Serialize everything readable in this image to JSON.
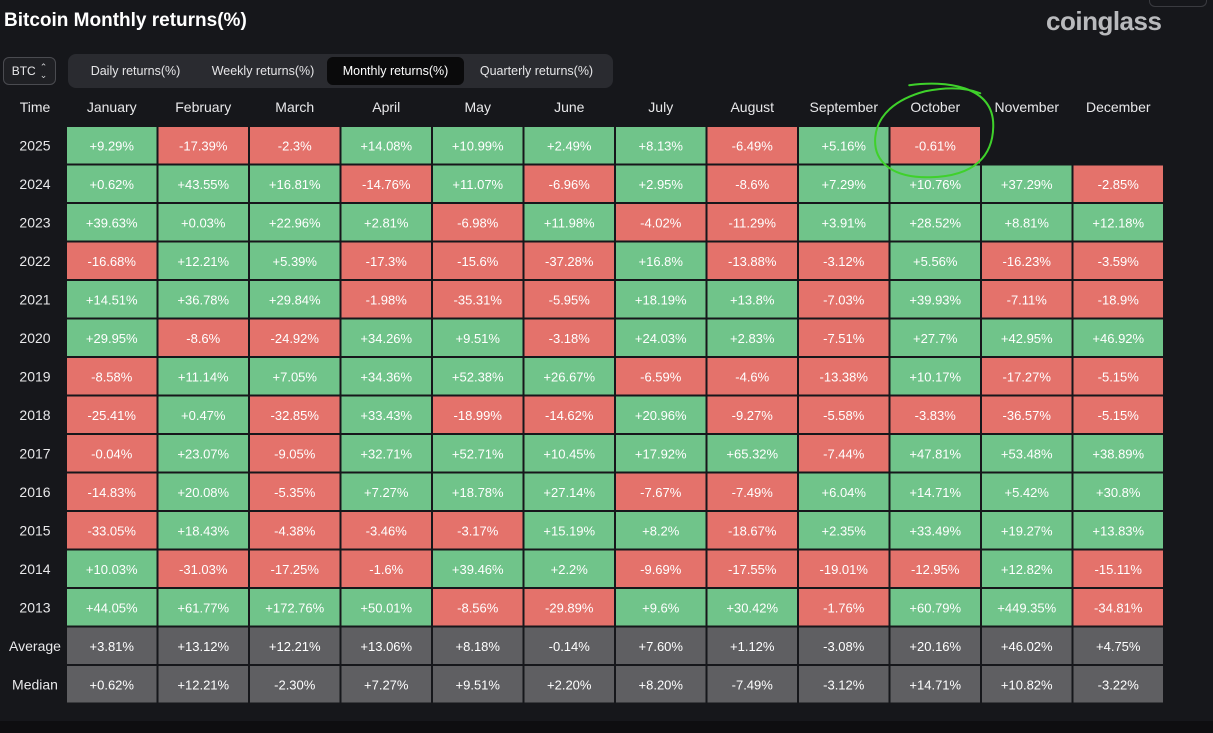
{
  "title": "Bitcoin Monthly returns(%)",
  "logo": "coinglass",
  "asset_select": {
    "value": "BTC"
  },
  "tabs": [
    {
      "label": "Daily returns(%)",
      "active": false
    },
    {
      "label": "Weekly returns(%)",
      "active": false
    },
    {
      "label": "Monthly returns(%)",
      "active": true
    },
    {
      "label": "Quarterly returns(%)",
      "active": false
    }
  ],
  "colors": {
    "positive": "#70c48a",
    "negative": "#e4726b",
    "summary": "#5f5f62",
    "highlight_circle": "#3fd12b",
    "background": "#16171b"
  },
  "chart_data": {
    "type": "table",
    "row_header": "Time",
    "columns": [
      "January",
      "February",
      "March",
      "April",
      "May",
      "June",
      "July",
      "August",
      "September",
      "October",
      "November",
      "December"
    ],
    "rows": [
      {
        "label": "2025",
        "values": [
          "+9.29%",
          "-17.39%",
          "-2.3%",
          "+14.08%",
          "+10.99%",
          "+2.49%",
          "+8.13%",
          "-6.49%",
          "+5.16%",
          "-0.61%"
        ]
      },
      {
        "label": "2024",
        "values": [
          "+0.62%",
          "+43.55%",
          "+16.81%",
          "-14.76%",
          "+11.07%",
          "-6.96%",
          "+2.95%",
          "-8.6%",
          "+7.29%",
          "+10.76%",
          "+37.29%",
          "-2.85%"
        ]
      },
      {
        "label": "2023",
        "values": [
          "+39.63%",
          "+0.03%",
          "+22.96%",
          "+2.81%",
          "-6.98%",
          "+11.98%",
          "-4.02%",
          "-11.29%",
          "+3.91%",
          "+28.52%",
          "+8.81%",
          "+12.18%"
        ]
      },
      {
        "label": "2022",
        "values": [
          "-16.68%",
          "+12.21%",
          "+5.39%",
          "-17.3%",
          "-15.6%",
          "-37.28%",
          "+16.8%",
          "-13.88%",
          "-3.12%",
          "+5.56%",
          "-16.23%",
          "-3.59%"
        ]
      },
      {
        "label": "2021",
        "values": [
          "+14.51%",
          "+36.78%",
          "+29.84%",
          "-1.98%",
          "-35.31%",
          "-5.95%",
          "+18.19%",
          "+13.8%",
          "-7.03%",
          "+39.93%",
          "-7.11%",
          "-18.9%"
        ]
      },
      {
        "label": "2020",
        "values": [
          "+29.95%",
          "-8.6%",
          "-24.92%",
          "+34.26%",
          "+9.51%",
          "-3.18%",
          "+24.03%",
          "+2.83%",
          "-7.51%",
          "+27.7%",
          "+42.95%",
          "+46.92%"
        ]
      },
      {
        "label": "2019",
        "values": [
          "-8.58%",
          "+11.14%",
          "+7.05%",
          "+34.36%",
          "+52.38%",
          "+26.67%",
          "-6.59%",
          "-4.6%",
          "-13.38%",
          "+10.17%",
          "-17.27%",
          "-5.15%"
        ]
      },
      {
        "label": "2018",
        "values": [
          "-25.41%",
          "+0.47%",
          "-32.85%",
          "+33.43%",
          "-18.99%",
          "-14.62%",
          "+20.96%",
          "-9.27%",
          "-5.58%",
          "-3.83%",
          "-36.57%",
          "-5.15%"
        ]
      },
      {
        "label": "2017",
        "values": [
          "-0.04%",
          "+23.07%",
          "-9.05%",
          "+32.71%",
          "+52.71%",
          "+10.45%",
          "+17.92%",
          "+65.32%",
          "-7.44%",
          "+47.81%",
          "+53.48%",
          "+38.89%"
        ]
      },
      {
        "label": "2016",
        "values": [
          "-14.83%",
          "+20.08%",
          "-5.35%",
          "+7.27%",
          "+18.78%",
          "+27.14%",
          "-7.67%",
          "-7.49%",
          "+6.04%",
          "+14.71%",
          "+5.42%",
          "+30.8%"
        ]
      },
      {
        "label": "2015",
        "values": [
          "-33.05%",
          "+18.43%",
          "-4.38%",
          "-3.46%",
          "-3.17%",
          "+15.19%",
          "+8.2%",
          "-18.67%",
          "+2.35%",
          "+33.49%",
          "+19.27%",
          "+13.83%"
        ]
      },
      {
        "label": "2014",
        "values": [
          "+10.03%",
          "-31.03%",
          "-17.25%",
          "-1.6%",
          "+39.46%",
          "+2.2%",
          "-9.69%",
          "-17.55%",
          "-19.01%",
          "-12.95%",
          "+12.82%",
          "-15.11%"
        ]
      },
      {
        "label": "2013",
        "values": [
          "+44.05%",
          "+61.77%",
          "+172.76%",
          "+50.01%",
          "-8.56%",
          "-29.89%",
          "+9.6%",
          "+30.42%",
          "-1.76%",
          "+60.79%",
          "+449.35%",
          "-34.81%"
        ]
      }
    ],
    "summary_rows": [
      {
        "label": "Average",
        "values": [
          "+3.81%",
          "+13.12%",
          "+12.21%",
          "+13.06%",
          "+8.18%",
          "-0.14%",
          "+7.60%",
          "+1.12%",
          "-3.08%",
          "+20.16%",
          "+46.02%",
          "+4.75%"
        ]
      },
      {
        "label": "Median",
        "values": [
          "+0.62%",
          "+12.21%",
          "-2.30%",
          "+7.27%",
          "+9.51%",
          "+2.20%",
          "+8.20%",
          "-7.49%",
          "-3.12%",
          "+14.71%",
          "+10.82%",
          "-3.22%"
        ]
      }
    ],
    "annotation": {
      "type": "hand-drawn circle",
      "row": "2025",
      "column": "October"
    }
  }
}
